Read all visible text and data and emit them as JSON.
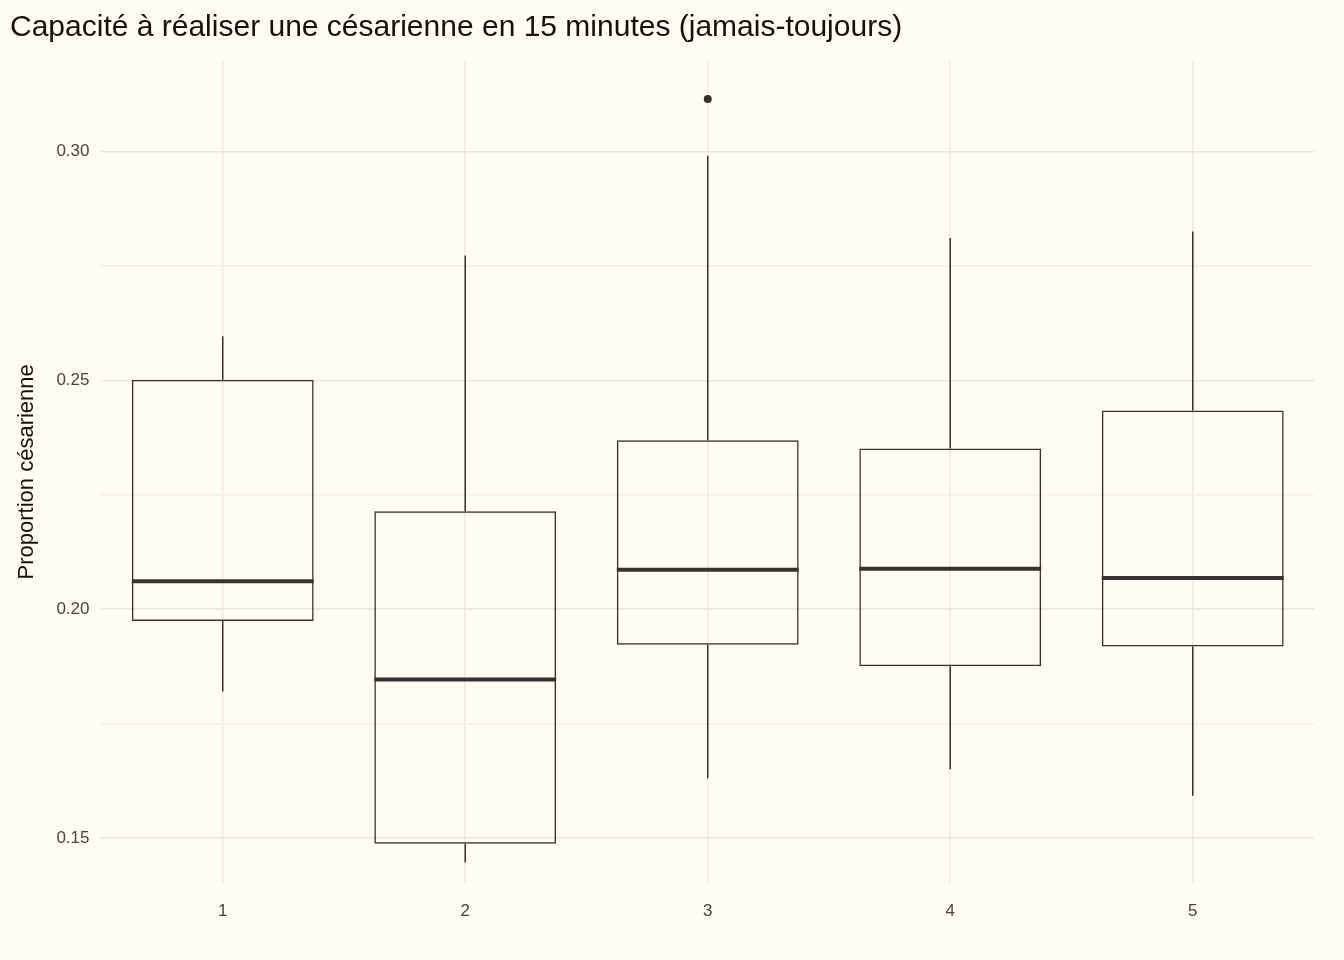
{
  "chart_data": {
    "type": "box",
    "title": "Capacité à réaliser une césarienne en 15 minutes (jamais-toujours)",
    "ylabel": "Proportion césarienne",
    "categories": [
      "1",
      "2",
      "3",
      "4",
      "5"
    ],
    "boxes": [
      {
        "low": 0.182,
        "q1": 0.1974,
        "median": 0.2061,
        "q3": 0.2501,
        "high": 0.2596
      },
      {
        "low": 0.1446,
        "q1": 0.1487,
        "median": 0.1846,
        "q3": 0.2214,
        "high": 0.2773
      },
      {
        "low": 0.163,
        "q1": 0.1922,
        "median": 0.2086,
        "q3": 0.2369,
        "high": 0.2991,
        "outliers": [
          0.3115
        ]
      },
      {
        "low": 0.165,
        "q1": 0.1875,
        "median": 0.2088,
        "q3": 0.2351,
        "high": 0.2811
      },
      {
        "low": 0.1592,
        "q1": 0.1918,
        "median": 0.2068,
        "q3": 0.2434,
        "high": 0.2825
      }
    ],
    "ylim": [
      0.14,
      0.32
    ],
    "yticks": [
      {
        "value": 0.15,
        "label": "0.15"
      },
      {
        "value": 0.175,
        "label": null
      },
      {
        "value": 0.2,
        "label": "0.20"
      },
      {
        "value": 0.225,
        "label": null
      },
      {
        "value": 0.25,
        "label": "0.25"
      },
      {
        "value": 0.275,
        "label": null
      },
      {
        "value": 0.3,
        "label": "0.30"
      }
    ],
    "grid": true,
    "legend": false
  }
}
